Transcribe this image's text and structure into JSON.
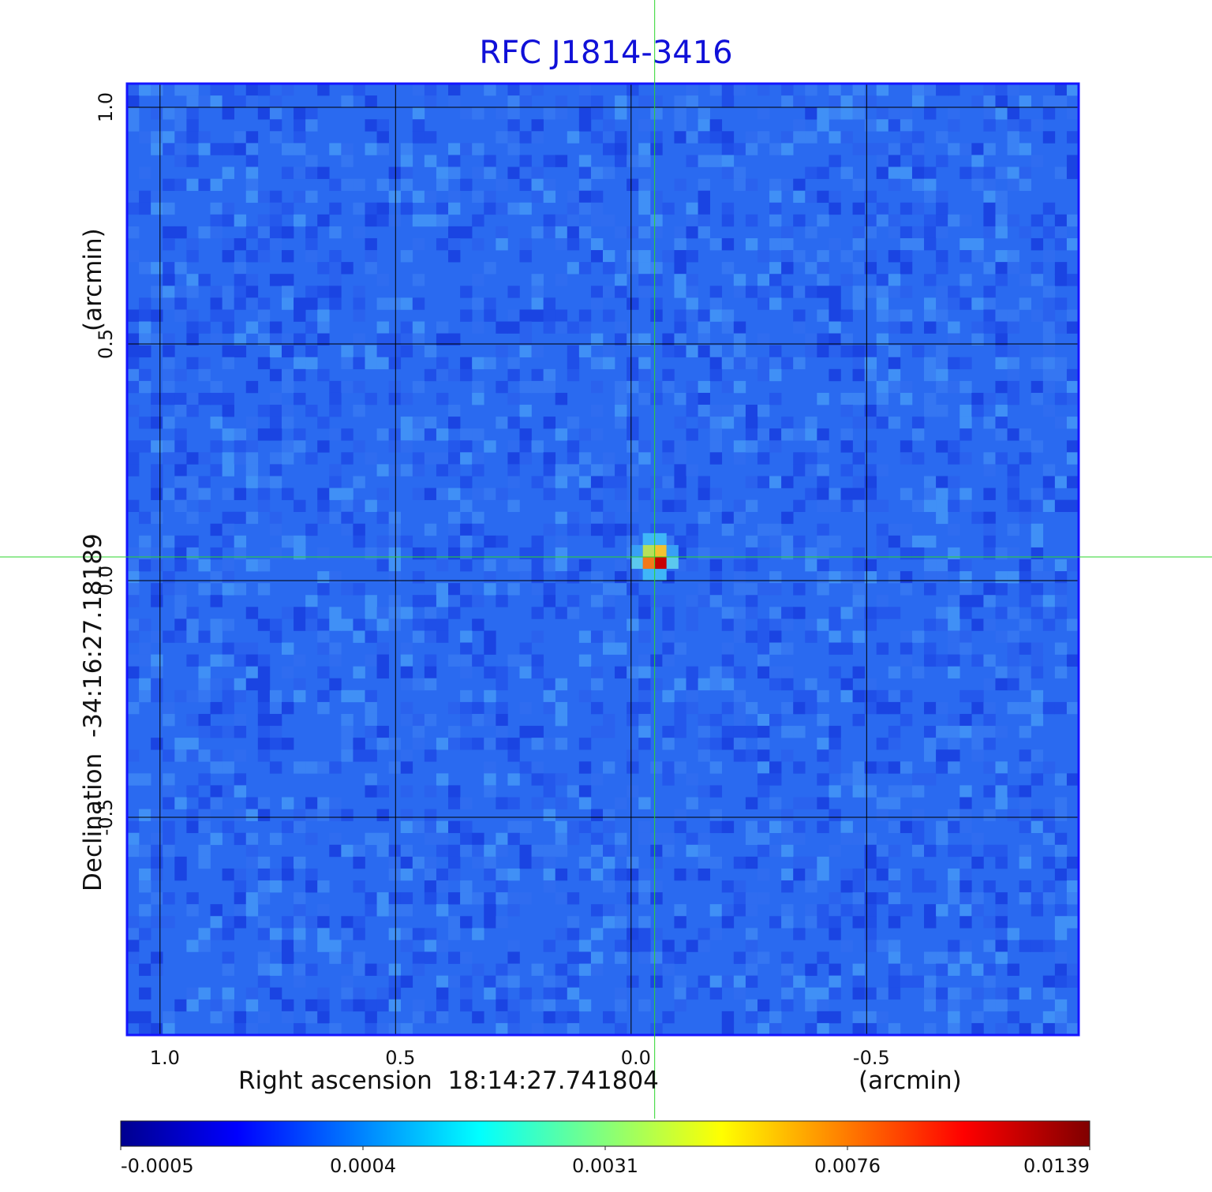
{
  "title": "RFC J1814-3416",
  "chart_data": {
    "type": "heatmap",
    "title": "RFC J1814-3416",
    "xlabel": "Right ascension  18:14:27.741804",
    "xlabel_unit": "(arcmin)",
    "ylabel": "Declination  -34:16:27.18189",
    "ylabel_unit": "(arcmin)",
    "x_ticks": [
      "1.0",
      "0.5",
      "0.0",
      "-0.5"
    ],
    "x_tick_values": [
      1.0,
      0.5,
      0.0,
      -0.5
    ],
    "y_ticks": [
      "1.0",
      "0.5",
      "0.0",
      "-0.5"
    ],
    "y_tick_values": [
      1.0,
      0.5,
      0.0,
      -0.5
    ],
    "xlim": [
      1.07,
      -0.95
    ],
    "ylim": [
      -0.96,
      1.05
    ],
    "grid": true,
    "source": {
      "x": -0.05,
      "y": 0.05,
      "peak": 0.0139
    },
    "crosshair": {
      "x": -0.05,
      "y": 0.05,
      "color": "#2bd62b"
    },
    "colorbar": {
      "ticks": [
        "-0.0005",
        "0.0004",
        "0.0031",
        "0.0076",
        "0.0139"
      ],
      "colormap": "jet",
      "colors": [
        "#00008f",
        "#0000ff",
        "#00ffff",
        "#ffff00",
        "#ff0000",
        "#800000"
      ]
    },
    "background_color": "#2a6af0"
  }
}
